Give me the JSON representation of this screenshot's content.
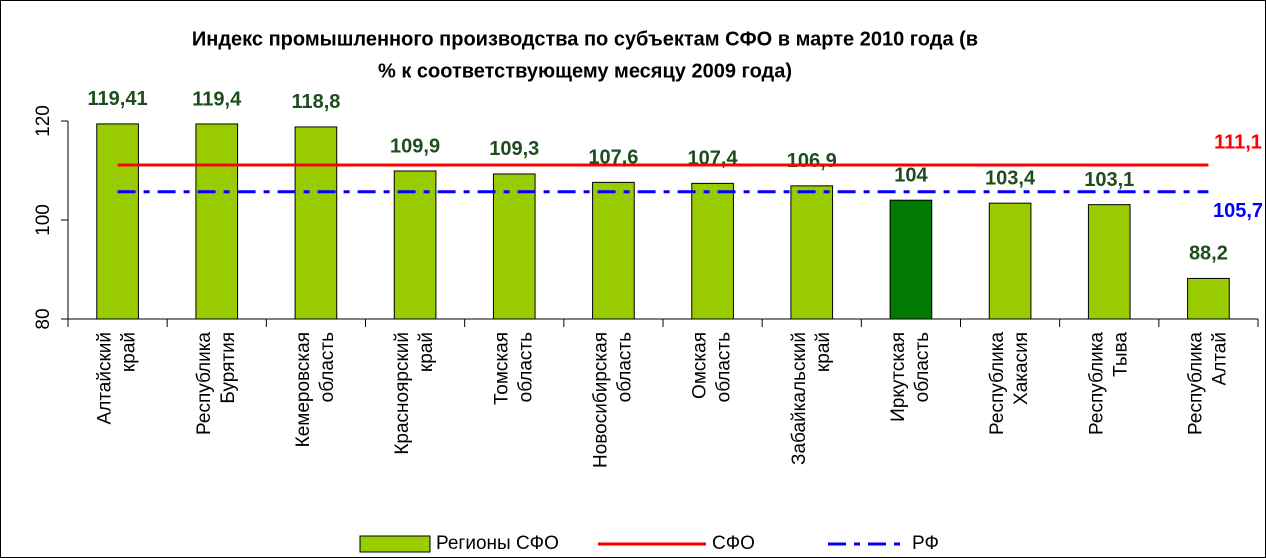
{
  "chart_data": {
    "type": "bar",
    "title": [
      "Индекс промышленного производства по субъектам СФО в марте 2010 года (в",
      "% к соответствующему месяцу 2009 года)"
    ],
    "categories": [
      [
        "Алтайский",
        "край"
      ],
      [
        "Республика",
        "Бурятия"
      ],
      [
        "Кемеровская",
        "область"
      ],
      [
        "Красноярский",
        "край"
      ],
      [
        "Томская",
        "область"
      ],
      [
        "Новосибирская",
        "область"
      ],
      [
        "Омская",
        "область"
      ],
      [
        "Забайкальский",
        "край"
      ],
      [
        "Иркутская",
        "область"
      ],
      [
        "Республика",
        "Хакасия"
      ],
      [
        "Республика",
        "Тыва"
      ],
      [
        "Республика",
        "Алтай"
      ]
    ],
    "series": [
      {
        "name": "Регионы СФО",
        "color": "#99cc00",
        "colors": [
          "#99cc00",
          "#99cc00",
          "#99cc00",
          "#99cc00",
          "#99cc00",
          "#99cc00",
          "#99cc00",
          "#99cc00",
          "#007a00",
          "#99cc00",
          "#99cc00",
          "#99cc00"
        ],
        "values": [
          119.41,
          119.4,
          118.8,
          109.9,
          109.3,
          107.6,
          107.4,
          106.9,
          104,
          103.4,
          103.1,
          88.2
        ],
        "value_labels": [
          "119,41",
          "119,4",
          "118,8",
          "109,9",
          "109,3",
          "107,6",
          "107,4",
          "106,9",
          "104",
          "103,4",
          "103,1",
          "88,2"
        ]
      },
      {
        "name": "СФО",
        "color": "#ff0000",
        "value": 111.1,
        "value_label": "111,1"
      },
      {
        "name": "РФ",
        "color": "#0000ff",
        "dashed": true,
        "value": 105.7,
        "value_label": "105,7"
      }
    ],
    "ylim": [
      80,
      120
    ],
    "yticks": [
      80,
      100,
      120
    ]
  }
}
